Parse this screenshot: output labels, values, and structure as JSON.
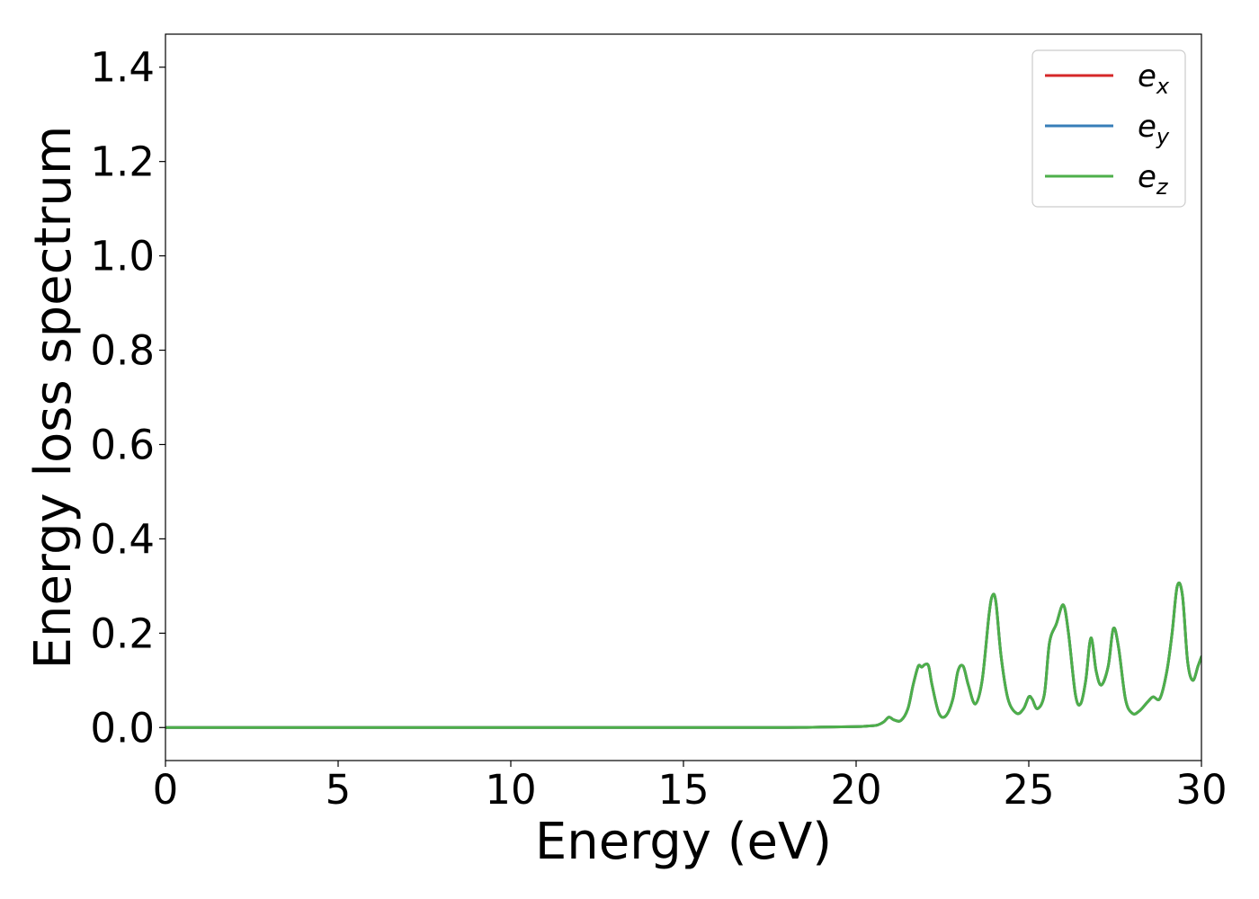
{
  "chart_data": {
    "type": "line",
    "xlabel": "Energy (eV)",
    "ylabel": "Energy loss spectrum",
    "xlim": [
      0,
      30
    ],
    "ylim": [
      -0.07,
      1.47
    ],
    "xticks": [
      0,
      5,
      10,
      15,
      20,
      25,
      30
    ],
    "xtick_labels": [
      "0",
      "5",
      "10",
      "15",
      "20",
      "25",
      "30"
    ],
    "yticks": [
      0.0,
      0.2,
      0.4,
      0.6,
      0.8,
      1.0,
      1.2,
      1.4
    ],
    "ytick_labels": [
      "0.0",
      "0.2",
      "0.4",
      "0.6",
      "0.8",
      "1.0",
      "1.2",
      "1.4"
    ],
    "grid": false,
    "legend_position": "top-right",
    "x": [
      0,
      5,
      10,
      15,
      18,
      19,
      20,
      20.3,
      20.6,
      20.8,
      20.95,
      21.1,
      21.3,
      21.5,
      21.65,
      21.8,
      21.9,
      22.0,
      22.1,
      22.2,
      22.4,
      22.6,
      22.8,
      22.95,
      23.1,
      23.25,
      23.45,
      23.65,
      23.85,
      23.95,
      24.05,
      24.2,
      24.4,
      24.65,
      24.85,
      25.0,
      25.1,
      25.25,
      25.45,
      25.6,
      25.8,
      26.0,
      26.15,
      26.35,
      26.5,
      26.65,
      26.8,
      26.95,
      27.1,
      27.3,
      27.45,
      27.6,
      27.8,
      28.0,
      28.2,
      28.45,
      28.6,
      28.8,
      29.0,
      29.15,
      29.3,
      29.45,
      29.6,
      29.75,
      29.9,
      30.0
    ],
    "series": [
      {
        "name": "e_x",
        "color": "#d62728",
        "values": [
          0,
          0,
          0,
          0,
          0,
          0.001,
          0.002,
          0.003,
          0.005,
          0.012,
          0.022,
          0.016,
          0.015,
          0.04,
          0.09,
          0.13,
          0.128,
          0.134,
          0.13,
          0.09,
          0.03,
          0.025,
          0.06,
          0.12,
          0.13,
          0.09,
          0.05,
          0.1,
          0.24,
          0.28,
          0.265,
          0.15,
          0.06,
          0.03,
          0.04,
          0.065,
          0.06,
          0.04,
          0.07,
          0.18,
          0.22,
          0.26,
          0.2,
          0.07,
          0.05,
          0.1,
          0.19,
          0.12,
          0.09,
          0.13,
          0.21,
          0.17,
          0.06,
          0.03,
          0.035,
          0.055,
          0.065,
          0.062,
          0.12,
          0.2,
          0.3,
          0.28,
          0.14,
          0.1,
          0.13,
          0.15
        ]
      },
      {
        "name": "e_y",
        "color": "#377eb8",
        "values": [
          0,
          0,
          0,
          0,
          0,
          0.001,
          0.002,
          0.003,
          0.005,
          0.012,
          0.022,
          0.016,
          0.015,
          0.04,
          0.09,
          0.13,
          0.128,
          0.134,
          0.13,
          0.09,
          0.03,
          0.025,
          0.06,
          0.12,
          0.13,
          0.09,
          0.05,
          0.1,
          0.24,
          0.28,
          0.265,
          0.15,
          0.06,
          0.03,
          0.04,
          0.065,
          0.06,
          0.04,
          0.07,
          0.18,
          0.22,
          0.26,
          0.2,
          0.07,
          0.05,
          0.1,
          0.19,
          0.12,
          0.09,
          0.13,
          0.21,
          0.17,
          0.06,
          0.03,
          0.035,
          0.055,
          0.065,
          0.062,
          0.12,
          0.2,
          0.3,
          0.28,
          0.14,
          0.1,
          0.13,
          0.15
        ]
      },
      {
        "name": "e_z",
        "color": "#4daf4a",
        "values": [
          0,
          0,
          0,
          0,
          0,
          0.001,
          0.002,
          0.003,
          0.005,
          0.012,
          0.022,
          0.016,
          0.015,
          0.04,
          0.09,
          0.13,
          0.128,
          0.134,
          0.13,
          0.09,
          0.03,
          0.025,
          0.06,
          0.12,
          0.13,
          0.09,
          0.05,
          0.1,
          0.24,
          0.28,
          0.265,
          0.15,
          0.06,
          0.03,
          0.04,
          0.065,
          0.06,
          0.04,
          0.07,
          0.18,
          0.22,
          0.26,
          0.2,
          0.07,
          0.05,
          0.1,
          0.19,
          0.12,
          0.09,
          0.13,
          0.21,
          0.17,
          0.06,
          0.03,
          0.035,
          0.055,
          0.065,
          0.062,
          0.12,
          0.2,
          0.3,
          0.28,
          0.14,
          0.1,
          0.13,
          0.15
        ]
      }
    ],
    "legend": [
      {
        "base": "e",
        "sub": "x",
        "color": "#d62728"
      },
      {
        "base": "e",
        "sub": "y",
        "color": "#377eb8"
      },
      {
        "base": "e",
        "sub": "z",
        "color": "#4daf4a"
      }
    ]
  }
}
